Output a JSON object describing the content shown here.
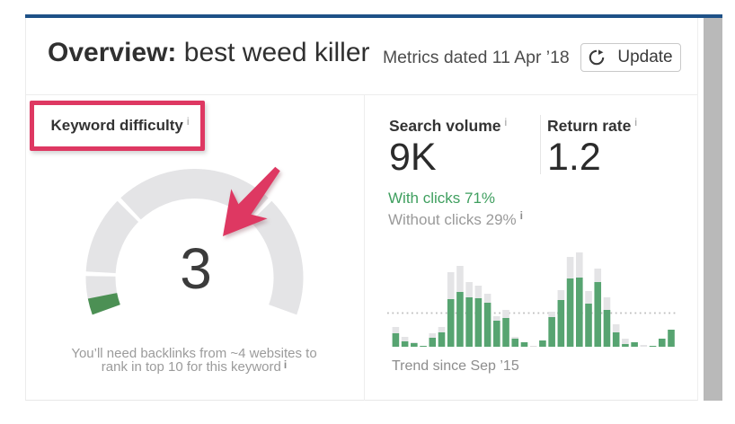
{
  "colors": {
    "accent_blue": "#1e5187",
    "annotation_red": "#de3862",
    "gauge_track": "#e4e4e6",
    "gauge_fill": "#4c9054",
    "bar_green": "#57a471",
    "bar_gray": "#e4e4e6",
    "clicks_green": "#3f9f5f",
    "muted_gray": "#9b9b9b",
    "scrollbar_gray": "#b9b9b9"
  },
  "header": {
    "title_prefix": "Overview:",
    "title_keyword": " best weed killer",
    "metrics_dated": "Metrics dated 11 Apr ’18",
    "update_label": "Update"
  },
  "keyword_difficulty": {
    "label": "Keyword difficulty",
    "info_mark": "i",
    "value": "3",
    "caption_line1": "You’ll need backlinks from ~4 websites to",
    "caption_line2": "rank in top 10 for this keyword",
    "caption_info_mark": "i"
  },
  "metrics": {
    "search_volume": {
      "label": "Search volume",
      "info_mark": "i",
      "value": "9K"
    },
    "return_rate": {
      "label": "Return rate",
      "info_mark": "i",
      "value": "1.2"
    },
    "with_clicks": "With clicks 71%",
    "without_clicks": "Without clicks 29%",
    "without_clicks_info_mark": "i",
    "trend_label": "Trend since Sep ’15"
  },
  "chart_data": [
    {
      "id": "difficulty_gauge",
      "type": "gauge",
      "title": "Keyword difficulty",
      "value": 3,
      "max": 100,
      "fill_fraction": 0.04,
      "segment_bounds": [
        0,
        0.1,
        0.3,
        0.7,
        1
      ],
      "start_angle": 200,
      "end_angle": -20,
      "center": [
        187.5,
        212
      ],
      "outer_radius": 121,
      "inner_radius": 88,
      "gap_degrees": 2.4
    },
    {
      "id": "volume_trend",
      "type": "bar",
      "stacked": true,
      "title": "Trend since Sep '15",
      "unit": "relative pixel height",
      "baseline_y": 113,
      "reference_line_above_baseline": 37.5,
      "bar_width": 7.6,
      "bar_pitch": 10.22,
      "first_bar_x": 5.6,
      "series": [
        {
          "name": "green",
          "values": [
            15,
            6,
            4,
            1,
            10,
            16,
            53,
            61,
            55,
            54,
            49,
            29,
            32,
            9,
            5,
            0,
            7,
            33,
            52,
            76,
            77,
            48,
            72,
            41,
            16,
            3,
            5,
            0,
            1,
            9,
            19
          ]
        },
        {
          "name": "gray",
          "values": [
            7,
            5,
            1,
            0,
            5,
            6,
            30,
            29,
            17,
            14,
            10,
            5,
            9,
            2,
            0,
            0,
            0,
            6,
            11,
            24,
            28,
            14,
            15,
            14,
            9,
            6,
            0,
            2,
            0,
            0,
            0
          ]
        }
      ]
    }
  ]
}
